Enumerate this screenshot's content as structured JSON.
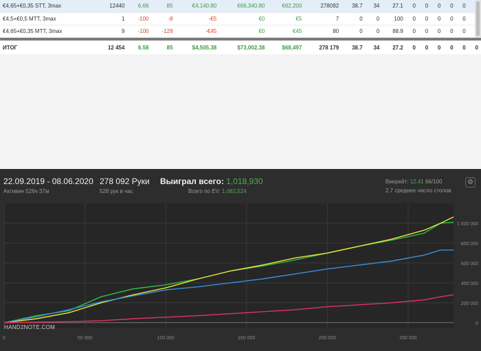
{
  "table": {
    "rows": [
      {
        "cells": [
          "€4,65+€0,35 STT, 3max",
          "12440",
          "6.66",
          "85",
          "€4,140.80",
          "€66,340.80",
          "€62,200",
          "278092",
          "38.7",
          "34",
          "27.1",
          "0",
          "0",
          "0",
          "0",
          "0",
          "0"
        ]
      },
      {
        "cells": [
          "€4,5+€0,5 MTT, 3max",
          "1",
          "-100",
          "-8",
          "-€5",
          "€0",
          "€5",
          "7",
          "0",
          "0",
          "100",
          "0",
          "0",
          "0",
          "0",
          "0",
          "0"
        ]
      },
      {
        "cells": [
          "€4,65+€0,35 MTT, 3max",
          "9",
          "-100",
          "-129",
          "-€45",
          "€0",
          "€45",
          "80",
          "0",
          "0",
          "88.9",
          "0",
          "0",
          "0",
          "0",
          "0",
          "0"
        ]
      }
    ],
    "total": {
      "cells": [
        "ИТОГ",
        "12 454",
        "6.58",
        "85",
        "$4,505.38",
        "$73,002.38",
        "$68,497",
        "278 179",
        "38.7",
        "34",
        "27.2",
        "0",
        "0",
        "0",
        "0",
        "0",
        "0"
      ]
    }
  },
  "graph": {
    "date_range": "22.09.2019 - 08.06.2020",
    "active_time": "Активен 526ч 37м",
    "hands": "278 092 Руки",
    "hands_per_hour": "528 рук в час",
    "won_label": "Выиграл всего:",
    "won_value": "1,018,930",
    "ev_label": "Всего по EV:",
    "ev_value": "1,062,524",
    "winrate_label": "Винрейт:",
    "winrate_value": "12.41",
    "winrate_extra": "66/100",
    "tables_avg": "2.7 среднее число столов",
    "gear_icon": "⚙",
    "logo_text": "HAND2NOTE.COM"
  },
  "colors": {
    "green": "#2fbf4a",
    "yellow": "#f2e63b",
    "blue": "#3c8fe0",
    "red": "#e0345f",
    "accent_green": "#4caf50"
  },
  "chart_data": {
    "type": "line",
    "x_ticks": [
      "0",
      "50 000",
      "100 000",
      "150 000",
      "200 000",
      "250 000"
    ],
    "y_ticks": [
      "0",
      "200 000",
      "400 000",
      "600 000",
      "800 000",
      "1 000 000"
    ],
    "xlim": [
      0,
      278092
    ],
    "ylim": [
      -50000,
      1200000
    ],
    "grid": true,
    "series": [
      {
        "color": "#2fbf4a",
        "x": [
          0,
          20000,
          40000,
          60000,
          80000,
          100000,
          120000,
          140000,
          160000,
          180000,
          200000,
          220000,
          240000,
          260000,
          270000,
          278092
        ],
        "y": [
          0,
          70000,
          120000,
          260000,
          340000,
          380000,
          440000,
          520000,
          570000,
          630000,
          700000,
          770000,
          830000,
          900000,
          1000000,
          1010000
        ]
      },
      {
        "color": "#f2e63b",
        "x": [
          0,
          20000,
          40000,
          60000,
          80000,
          100000,
          120000,
          140000,
          160000,
          180000,
          200000,
          220000,
          240000,
          260000,
          270000,
          278092
        ],
        "y": [
          0,
          40000,
          100000,
          200000,
          280000,
          350000,
          440000,
          520000,
          580000,
          650000,
          700000,
          770000,
          840000,
          930000,
          1000000,
          1062524
        ]
      },
      {
        "color": "#3c8fe0",
        "x": [
          0,
          20000,
          40000,
          60000,
          80000,
          100000,
          120000,
          140000,
          160000,
          180000,
          200000,
          220000,
          240000,
          260000,
          270000,
          278092
        ],
        "y": [
          0,
          60000,
          130000,
          210000,
          270000,
          330000,
          360000,
          400000,
          440000,
          490000,
          540000,
          580000,
          620000,
          680000,
          730000,
          730000
        ]
      },
      {
        "color": "#e0345f",
        "x": [
          0,
          20000,
          40000,
          60000,
          80000,
          100000,
          120000,
          140000,
          160000,
          180000,
          200000,
          220000,
          240000,
          260000,
          270000,
          278092
        ],
        "y": [
          0,
          5000,
          10000,
          20000,
          40000,
          55000,
          70000,
          90000,
          110000,
          130000,
          160000,
          180000,
          200000,
          230000,
          260000,
          280000
        ]
      }
    ]
  }
}
